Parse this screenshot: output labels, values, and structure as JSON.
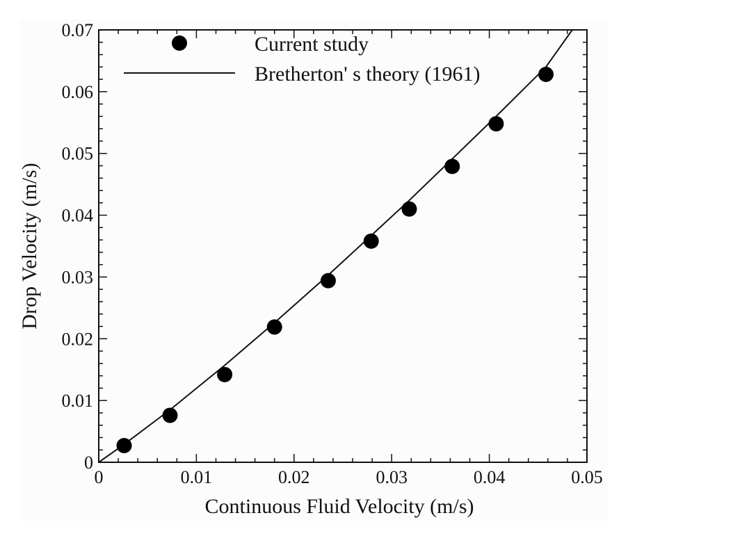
{
  "chart_data": {
    "type": "scatter",
    "xlabel": "Continuous Fluid Velocity (m/s)",
    "ylabel": "Drop Velocity (m/s)",
    "xlim": [
      0,
      0.05
    ],
    "ylim": [
      0,
      0.07
    ],
    "x_ticks": [
      {
        "value": 0,
        "label": "0"
      },
      {
        "value": 0.01,
        "label": "0.01"
      },
      {
        "value": 0.02,
        "label": "0.02"
      },
      {
        "value": 0.03,
        "label": "0.03"
      },
      {
        "value": 0.04,
        "label": "0.04"
      },
      {
        "value": 0.05,
        "label": "0.05"
      }
    ],
    "y_ticks": [
      {
        "value": 0,
        "label": "0"
      },
      {
        "value": 0.01,
        "label": "0.01"
      },
      {
        "value": 0.02,
        "label": "0.02"
      },
      {
        "value": 0.03,
        "label": "0.03"
      },
      {
        "value": 0.04,
        "label": "0.04"
      },
      {
        "value": 0.05,
        "label": "0.05"
      },
      {
        "value": 0.06,
        "label": "0.06"
      },
      {
        "value": 0.07,
        "label": "0.07"
      }
    ],
    "grid": false,
    "legend_position": "top-left",
    "series": [
      {
        "name": "Current study",
        "kind": "scatter",
        "color": "#000000",
        "points": [
          {
            "x": 0.0026,
            "y": 0.0027
          },
          {
            "x": 0.0073,
            "y": 0.0076
          },
          {
            "x": 0.0129,
            "y": 0.0142
          },
          {
            "x": 0.018,
            "y": 0.0219
          },
          {
            "x": 0.0235,
            "y": 0.0294
          },
          {
            "x": 0.0279,
            "y": 0.0358
          },
          {
            "x": 0.0318,
            "y": 0.041
          },
          {
            "x": 0.0362,
            "y": 0.0479
          },
          {
            "x": 0.0407,
            "y": 0.0548
          },
          {
            "x": 0.0458,
            "y": 0.0628
          }
        ]
      },
      {
        "name": "Bretherton' s theory (1961)",
        "kind": "line",
        "color": "#000000",
        "points": [
          {
            "x": 0.0,
            "y": 0.0
          },
          {
            "x": 0.0026,
            "y": 0.0029
          },
          {
            "x": 0.0073,
            "y": 0.0085
          },
          {
            "x": 0.0129,
            "y": 0.0157
          },
          {
            "x": 0.018,
            "y": 0.0226
          },
          {
            "x": 0.0235,
            "y": 0.0303
          },
          {
            "x": 0.0279,
            "y": 0.0367
          },
          {
            "x": 0.0318,
            "y": 0.0424
          },
          {
            "x": 0.0362,
            "y": 0.0491
          },
          {
            "x": 0.0407,
            "y": 0.056
          },
          {
            "x": 0.0458,
            "y": 0.064
          },
          {
            "x": 0.0485,
            "y": 0.07
          }
        ]
      }
    ]
  }
}
